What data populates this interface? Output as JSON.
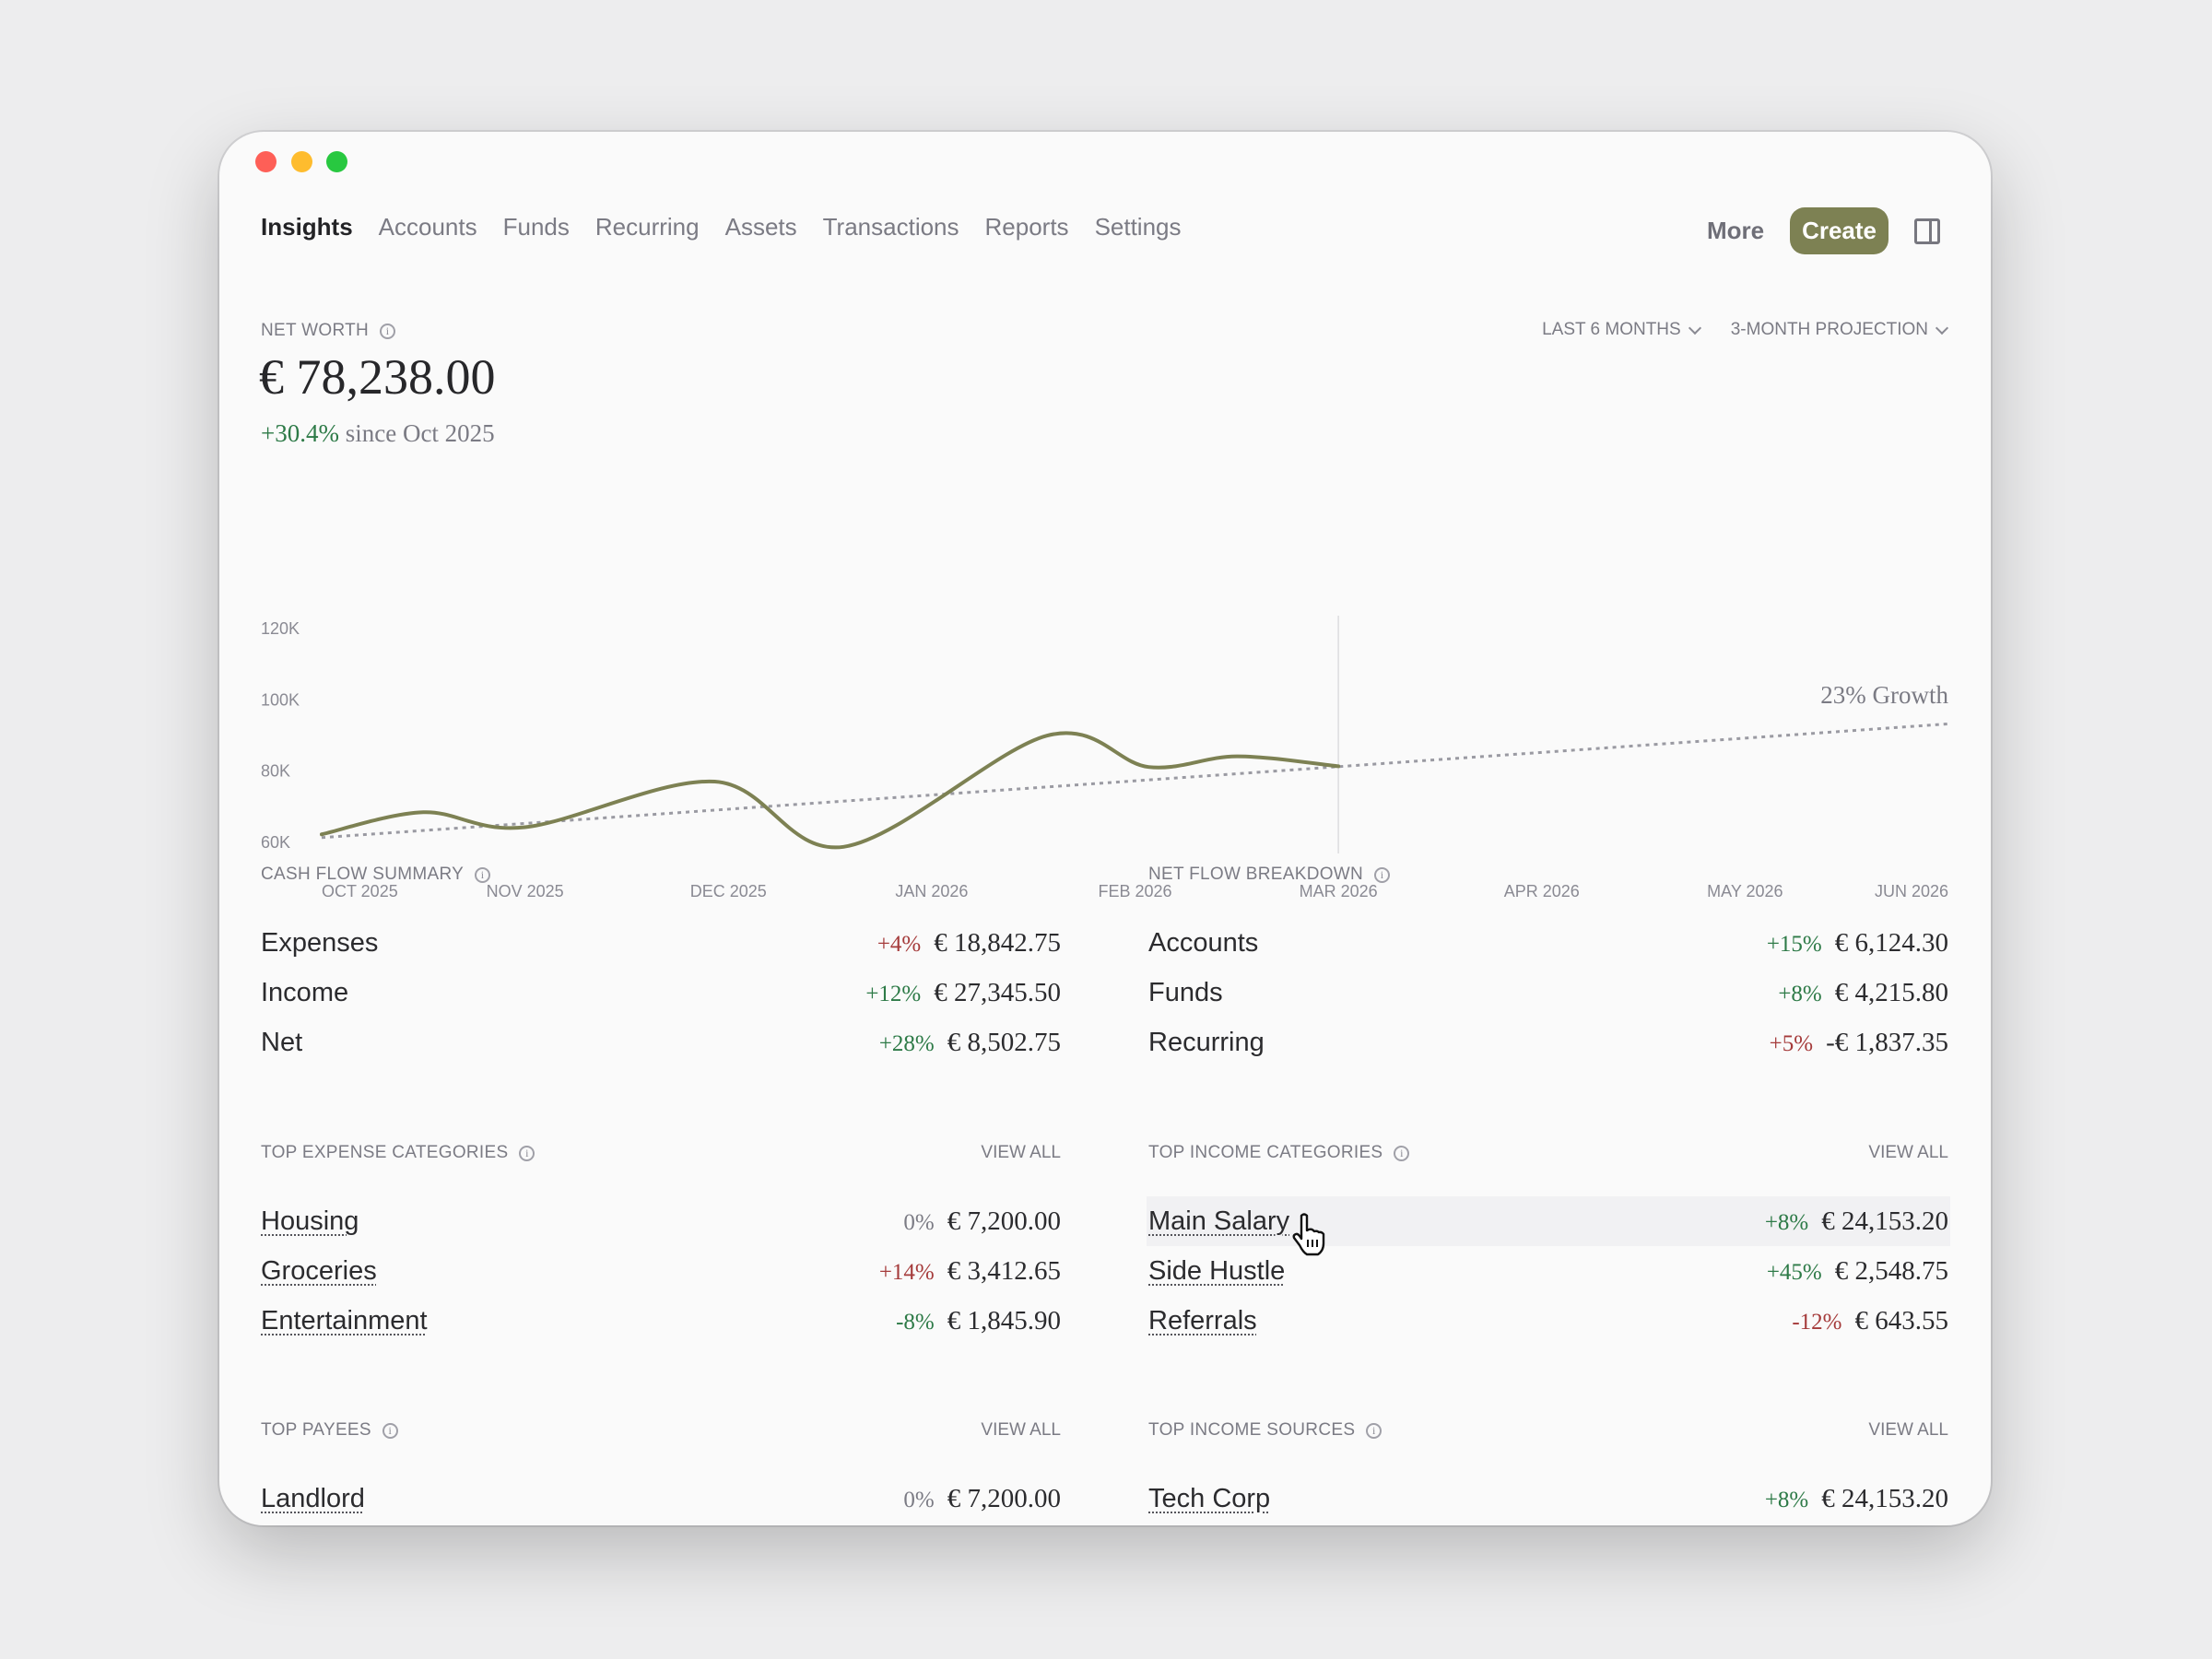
{
  "window": {
    "controls": {
      "close": "#fe5f57",
      "minimize": "#febc2e",
      "zoom": "#28c840"
    }
  },
  "nav": {
    "items": [
      {
        "label": "Insights",
        "active": true
      },
      {
        "label": "Accounts"
      },
      {
        "label": "Funds"
      },
      {
        "label": "Recurring"
      },
      {
        "label": "Assets"
      },
      {
        "label": "Transactions"
      },
      {
        "label": "Reports"
      },
      {
        "label": "Settings"
      }
    ],
    "more_label": "More",
    "create_label": "Create",
    "panel_icon": "sidebar-toggle-icon"
  },
  "net_worth": {
    "label": "NET WORTH",
    "value": "€ 78,238.00",
    "change": "+30.4%",
    "change_suffix": "since Oct 2025",
    "range_dropdown": "LAST 6 MONTHS",
    "projection_dropdown": "3-MONTH PROJECTION"
  },
  "colors": {
    "accent": "#7d8153",
    "positive": "#2d7a47",
    "negative": "#a53b3b",
    "projection": "#9a9aa2"
  },
  "chart_data": {
    "type": "line",
    "x_ticks": [
      "OCT 2025",
      "NOV 2025",
      "DEC 2025",
      "JAN 2026",
      "FEB 2026",
      "MAR 2026",
      "APR 2026",
      "MAY 2026",
      "JUN 2026"
    ],
    "y_ticks": [
      "60K",
      "80K",
      "100K",
      "120K"
    ],
    "y_tick_values": [
      60000,
      80000,
      100000,
      120000
    ],
    "ylim": [
      60000,
      120000
    ],
    "xlim": [
      "2025-10-01",
      "2026-06-01"
    ],
    "grid": false,
    "today_marker": "2026-03-01",
    "series": [
      {
        "type": "actual",
        "color": "#7d8153",
        "points": [
          [
            "2025-10-01",
            62000
          ],
          [
            "2025-10-16",
            68200
          ],
          [
            "2025-11-01",
            64000
          ],
          [
            "2025-11-29",
            76800
          ],
          [
            "2025-12-18",
            58500
          ],
          [
            "2026-01-18",
            89700
          ],
          [
            "2026-02-03",
            80900
          ],
          [
            "2026-02-16",
            83900
          ],
          [
            "2026-03-01",
            81100
          ]
        ]
      },
      {
        "type": "projection",
        "style": "dotted",
        "color": "#9a9aa2",
        "points": [
          [
            "2025-10-01",
            61100
          ],
          [
            "2026-03-01",
            81000
          ],
          [
            "2026-06-01",
            93000
          ]
        ]
      }
    ],
    "annotation": "23% Growth"
  },
  "cash_flow": {
    "title": "CASH FLOW SUMMARY",
    "rows": [
      {
        "name": "Expenses",
        "pct": "+4%",
        "tone": "neg",
        "amount": "€ 18,842.75"
      },
      {
        "name": "Income",
        "pct": "+12%",
        "tone": "pos",
        "amount": "€ 27,345.50"
      },
      {
        "name": "Net",
        "pct": "+28%",
        "tone": "pos",
        "amount": "€ 8,502.75"
      }
    ]
  },
  "net_flow": {
    "title": "NET FLOW BREAKDOWN",
    "rows": [
      {
        "name": "Accounts",
        "pct": "+15%",
        "tone": "pos",
        "amount": "€ 6,124.30"
      },
      {
        "name": "Funds",
        "pct": "+8%",
        "tone": "pos",
        "amount": "€ 4,215.80"
      },
      {
        "name": "Recurring",
        "pct": "+5%",
        "tone": "neg",
        "amount": "-€ 1,837.35"
      }
    ]
  },
  "top_expense": {
    "title": "TOP EXPENSE CATEGORIES",
    "view_all": "VIEW ALL",
    "rows": [
      {
        "name": "Housing",
        "pct": "0%",
        "tone": "zero",
        "amount": "€ 7,200.00"
      },
      {
        "name": "Groceries",
        "pct": "+14%",
        "tone": "neg",
        "amount": "€ 3,412.65"
      },
      {
        "name": "Entertainment",
        "pct": "-8%",
        "tone": "pos",
        "amount": "€ 1,845.90"
      }
    ]
  },
  "top_income": {
    "title": "TOP INCOME CATEGORIES",
    "view_all": "VIEW ALL",
    "rows": [
      {
        "name": "Main Salary",
        "pct": "+8%",
        "tone": "pos",
        "amount": "€ 24,153.20",
        "hover": true
      },
      {
        "name": "Side Hustle",
        "pct": "+45%",
        "tone": "pos",
        "amount": "€ 2,548.75"
      },
      {
        "name": "Referrals",
        "pct": "-12%",
        "tone": "neg",
        "amount": "€ 643.55"
      }
    ]
  },
  "top_payees": {
    "title": "TOP PAYEES",
    "view_all": "VIEW ALL",
    "rows": [
      {
        "name": "Landlord",
        "pct": "0%",
        "tone": "zero",
        "amount": "€ 7,200.00"
      }
    ]
  },
  "top_sources": {
    "title": "TOP INCOME SOURCES",
    "view_all": "VIEW ALL",
    "rows": [
      {
        "name": "Tech Corp",
        "pct": "+8%",
        "tone": "pos",
        "amount": "€ 24,153.20"
      }
    ]
  }
}
